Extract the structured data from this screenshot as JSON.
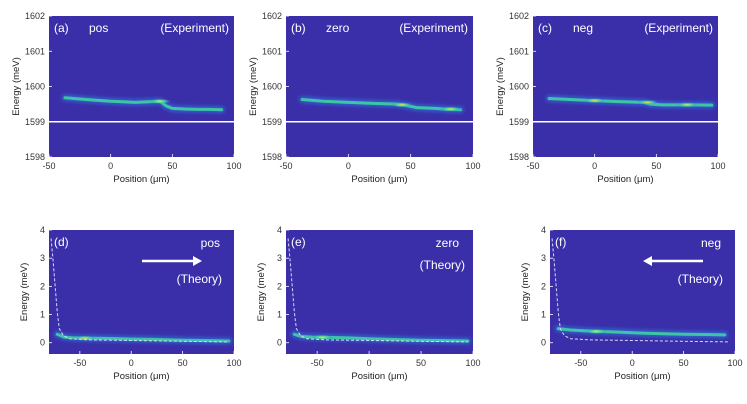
{
  "colors": {
    "background": "#3a2fa8",
    "hot": "#f7e33c",
    "warm": "#3fd0a0",
    "cool": "#2f7fe6",
    "reference": "#ffffff"
  },
  "chart_data": [
    {
      "type": "heatmap",
      "panel": "(a)",
      "label": "pos",
      "source": "(Experiment)",
      "xlabel": "Position (μm)",
      "ylabel": "Energy (meV)",
      "xlim": [
        -50,
        100
      ],
      "ylim": [
        1598,
        1602
      ],
      "xticks": [
        "-50",
        "0",
        "50",
        "100"
      ],
      "yticks": [
        "1598",
        "1599",
        "1600",
        "1601",
        "1602"
      ],
      "reference_line": 1599,
      "ridge": {
        "x": [
          -37,
          -20,
          0,
          20,
          40,
          45,
          50,
          60,
          70,
          80,
          90
        ],
        "y": [
          1599.68,
          1599.63,
          1599.58,
          1599.55,
          1599.58,
          1599.45,
          1599.38,
          1599.36,
          1599.35,
          1599.35,
          1599.34
        ]
      },
      "hotspots": [
        [
          40,
          1599.58
        ]
      ]
    },
    {
      "type": "heatmap",
      "panel": "(b)",
      "label": "zero",
      "source": "(Experiment)",
      "xlabel": "Position (μm)",
      "ylabel": "Energy (meV)",
      "xlim": [
        -50,
        100
      ],
      "ylim": [
        1598,
        1602
      ],
      "xticks": [
        "-50",
        "0",
        "50",
        "100"
      ],
      "yticks": [
        "1598",
        "1599",
        "1600",
        "1601",
        "1602"
      ],
      "reference_line": 1599,
      "ridge": {
        "x": [
          -37,
          -20,
          0,
          20,
          40,
          45,
          55,
          70,
          80,
          90
        ],
        "y": [
          1599.63,
          1599.58,
          1599.55,
          1599.52,
          1599.5,
          1599.47,
          1599.4,
          1599.38,
          1599.35,
          1599.34
        ]
      },
      "hotspots": [
        [
          43,
          1599.48
        ],
        [
          82,
          1599.36
        ]
      ]
    },
    {
      "type": "heatmap",
      "panel": "(c)",
      "label": "neg",
      "source": "(Experiment)",
      "xlabel": "Position (μm)",
      "ylabel": "Energy (meV)",
      "xlim": [
        -50,
        100
      ],
      "ylim": [
        1598,
        1602
      ],
      "xticks": [
        "-50",
        "0",
        "50",
        "100"
      ],
      "yticks": [
        "1598",
        "1599",
        "1600",
        "1601",
        "1602"
      ],
      "reference_line": 1599,
      "ridge": {
        "x": [
          -37,
          -20,
          0,
          20,
          40,
          45,
          55,
          70,
          80,
          95
        ],
        "y": [
          1599.66,
          1599.63,
          1599.6,
          1599.57,
          1599.55,
          1599.5,
          1599.48,
          1599.48,
          1599.48,
          1599.47
        ]
      },
      "hotspots": [
        [
          0,
          1599.6
        ],
        [
          43,
          1599.55
        ],
        [
          75,
          1599.48
        ]
      ]
    },
    {
      "type": "heatmap",
      "panel": "(d)",
      "label": "pos",
      "source": "(Theory)",
      "arrow": "right",
      "xlabel": "Position (μm)",
      "ylabel": "Energy (meV)",
      "xlim": [
        -80,
        100
      ],
      "ylim": [
        -0.4,
        4
      ],
      "xticks": [
        "-50",
        "0",
        "50",
        "100"
      ],
      "yticks": [
        "0",
        "1",
        "2",
        "3",
        "4"
      ],
      "dashed_curve": {
        "x": [
          -78,
          -76,
          -74,
          -72,
          -70,
          -66,
          -60,
          -40,
          0,
          50,
          95
        ],
        "y": [
          3.7,
          2.9,
          2.0,
          1.1,
          0.5,
          0.25,
          0.14,
          0.1,
          0.08,
          0.05,
          0.03
        ]
      },
      "ridge": {
        "x": [
          -72,
          -65,
          -55,
          -40,
          -20,
          0,
          20,
          50,
          70,
          95
        ],
        "y": [
          0.3,
          0.2,
          0.17,
          0.16,
          0.15,
          0.13,
          0.12,
          0.09,
          0.08,
          0.06
        ]
      },
      "hotspots": [
        [
          -45,
          0.16
        ]
      ]
    },
    {
      "type": "heatmap",
      "panel": "(e)",
      "label": "zero",
      "source": "(Theory)",
      "xlabel": "Position (μm)",
      "ylabel": "Energy (meV)",
      "xlim": [
        -80,
        100
      ],
      "ylim": [
        -0.4,
        4
      ],
      "xticks": [
        "-50",
        "0",
        "50",
        "100"
      ],
      "yticks": [
        "0",
        "1",
        "2",
        "3",
        "4"
      ],
      "dashed_curve": {
        "x": [
          -78,
          -76,
          -74,
          -72,
          -70,
          -66,
          -60,
          -40,
          0,
          50,
          95
        ],
        "y": [
          3.7,
          2.9,
          2.0,
          1.1,
          0.5,
          0.25,
          0.14,
          0.1,
          0.08,
          0.05,
          0.03
        ]
      },
      "ridge": {
        "x": [
          -72,
          -65,
          -55,
          -40,
          -20,
          0,
          20,
          50,
          70,
          95
        ],
        "y": [
          0.3,
          0.22,
          0.2,
          0.19,
          0.17,
          0.14,
          0.12,
          0.09,
          0.08,
          0.06
        ]
      },
      "hotspots": [
        [
          -45,
          0.19
        ]
      ]
    },
    {
      "type": "heatmap",
      "panel": "(f)",
      "label": "neg",
      "source": "(Theory)",
      "arrow": "left",
      "xlabel": "Position (μm)",
      "ylabel": "Energy (meV)",
      "xlim": [
        -80,
        100
      ],
      "ylim": [
        -0.4,
        4
      ],
      "xticks": [
        "-50",
        "0",
        "50",
        "100"
      ],
      "yticks": [
        "0",
        "1",
        "2",
        "3",
        "4"
      ],
      "dashed_curve": {
        "x": [
          -78,
          -76,
          -74,
          -72,
          -70,
          -66,
          -60,
          -40,
          0,
          50,
          95
        ],
        "y": [
          3.7,
          2.9,
          2.0,
          1.1,
          0.5,
          0.25,
          0.14,
          0.1,
          0.08,
          0.05,
          0.03
        ]
      },
      "ridge": {
        "x": [
          -72,
          -60,
          -45,
          -30,
          -10,
          10,
          30,
          50,
          70,
          90
        ],
        "y": [
          0.5,
          0.45,
          0.42,
          0.4,
          0.37,
          0.34,
          0.32,
          0.3,
          0.29,
          0.28
        ]
      },
      "hotspots": [
        [
          -35,
          0.4
        ]
      ]
    }
  ]
}
